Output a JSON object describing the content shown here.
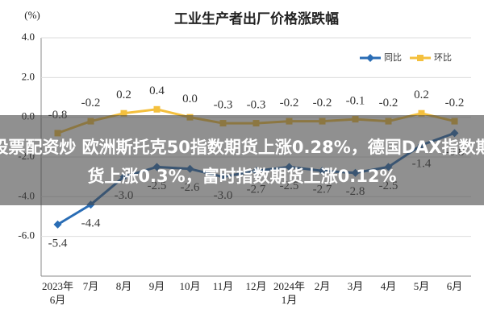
{
  "chart_data": {
    "type": "line",
    "title": "工业生产者出厂价格涨跌幅",
    "y_label": "(%)",
    "categories": [
      "2023年\n6月",
      "7月",
      "8月",
      "9月",
      "10月",
      "11月",
      "12月",
      "2024年\n1月",
      "2月",
      "3月",
      "4月",
      "5月",
      "6月"
    ],
    "series": [
      {
        "name": "同比",
        "color": "#2a6db5",
        "marker": "diamond",
        "label_side": "below",
        "values": [
          -5.4,
          -4.4,
          -3.0,
          -2.5,
          -2.6,
          -3.0,
          -2.7,
          -2.5,
          -2.7,
          -2.8,
          -2.5,
          -1.4,
          -0.8
        ],
        "value_labels": [
          "-5.4",
          "-4.4",
          "-3.0",
          "-2.5",
          "-2.6",
          "-3.0",
          "-2.7",
          "-2.5",
          "-2.7",
          "-2.8",
          "-2.5",
          "-1.4",
          "-0.8"
        ]
      },
      {
        "name": "环比",
        "color": "#f4c03e",
        "marker": "square",
        "label_side": "above",
        "values": [
          -0.8,
          -0.2,
          0.2,
          0.4,
          0.0,
          -0.3,
          -0.3,
          -0.2,
          -0.2,
          -0.1,
          -0.2,
          0.2,
          -0.2
        ],
        "value_labels": [
          "-0.8",
          "-0.2",
          "0.2",
          "0.4",
          "0.0",
          "-0.3",
          "-0.3",
          "-0.2",
          "-0.2",
          "-0.1",
          "-0.2",
          "0.2",
          "-0.2"
        ]
      }
    ],
    "ylim": [
      -8,
      4
    ],
    "yticks": [
      {
        "value": 4,
        "label": "4.0"
      },
      {
        "value": 2,
        "label": "2.0"
      },
      {
        "value": 0,
        "label": "0.0"
      },
      {
        "value": -2,
        "label": "-2.0"
      },
      {
        "value": -4,
        "label": "-4.0"
      },
      {
        "value": -6,
        "label": "-6.0"
      }
    ],
    "grid": true,
    "legend": "top-right"
  },
  "overlay_text": "股票配资炒 欧洲斯托克50指数期货上涨0.28%，德国DAX指数期货上涨0.3%，富时指数期货上涨0.12%"
}
